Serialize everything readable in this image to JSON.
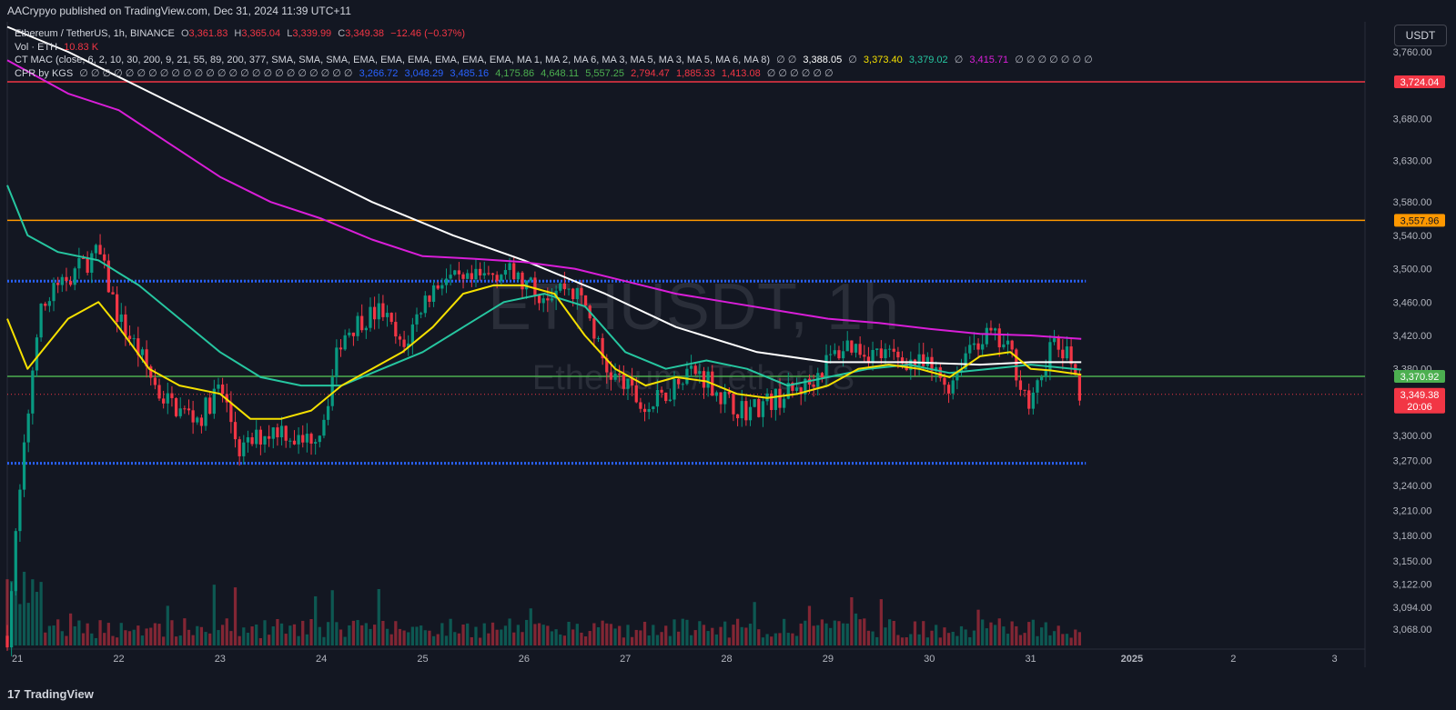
{
  "header": {
    "published": "AACrypyo published on TradingView.com, Dec 31, 2024 11:39 UTC+11"
  },
  "legend": {
    "symbol_line": "Ethereum / TetherUS, 1h, BINANCE",
    "ohlc": {
      "o_label": "O",
      "o": "3,361.83",
      "h_label": "H",
      "h": "3,365.04",
      "l_label": "L",
      "l": "3,339.99",
      "c_label": "C",
      "c": "3,349.38",
      "change": "−12.46 (−0.37%)"
    },
    "vol_label": "Vol · ETH",
    "vol_value": "10.83 K",
    "ctmac_label": "CT MAC (close, 6, 2, 10, 30, 200, 9, 21, 55, 89, 200, 377, SMA, SMA, SMA, EMA, EMA, EMA, EMA, EMA, EMA, MA 1, MA 2, MA 6, MA 3, MA 5, MA 3, MA 5, MA 6, MA 8)",
    "ctmac_sep1": "∅ ∅",
    "ctmac_values": [
      {
        "v": "3,388.05",
        "color": "#ffffff"
      },
      {
        "v": "3,373.40",
        "color": "#f5e000"
      },
      {
        "v": "3,379.02",
        "color": "#26c6a0"
      },
      {
        "v": "3,415.71",
        "color": "#d91ed8"
      }
    ],
    "ctmac_sep2": "∅",
    "ctmac_tail": "∅ ∅ ∅ ∅ ∅ ∅ ∅",
    "cpr_label": "CPR by KGS",
    "cpr_sep": "∅ ∅ ∅ ∅ ∅ ∅ ∅ ∅ ∅ ∅ ∅ ∅ ∅ ∅ ∅ ∅ ∅ ∅ ∅ ∅ ∅ ∅ ∅ ∅",
    "cpr_values": [
      {
        "v": "3,266.72",
        "color": "#2962ff"
      },
      {
        "v": "3,048.29",
        "color": "#2962ff"
      },
      {
        "v": "3,485.16",
        "color": "#2962ff"
      },
      {
        "v": "4,175.86",
        "color": "#4caf50"
      },
      {
        "v": "4,648.11",
        "color": "#4caf50"
      },
      {
        "v": "5,557.25",
        "color": "#4caf50"
      },
      {
        "v": "2,794.47",
        "color": "#f23645"
      },
      {
        "v": "1,885.33",
        "color": "#f23645"
      },
      {
        "v": "1,413.08",
        "color": "#f23645"
      }
    ],
    "cpr_tail": "∅ ∅ ∅ ∅ ∅ ∅"
  },
  "currency_button": "USDT",
  "watermark": {
    "symbol": "ETHUSDT, 1h",
    "name": "Ethereum / TetherUS"
  },
  "footer": {
    "brand": "TradingView",
    "logo": "17"
  },
  "colors": {
    "bg": "#131722",
    "up": "#089981",
    "down": "#f23645",
    "sma200": "#ffffff",
    "ma_yellow": "#f5e000",
    "ma_green": "#26c6a0",
    "ma_magenta": "#d91ed8",
    "cpr": "#2962ff"
  },
  "chart_data": {
    "type": "candlestick",
    "interval": "1h",
    "y_ticks": [
      "3,760.00",
      "3,680.00",
      "3,630.00",
      "3,580.00",
      "3,540.00",
      "3,500.00",
      "3,460.00",
      "3,420.00",
      "3,380.00",
      "3,300.00",
      "3,270.00",
      "3,240.00",
      "3,210.00",
      "3,180.00",
      "3,150.00",
      "3,122.00",
      "3,094.00",
      "3,068.00"
    ],
    "y_tick_values": [
      3760,
      3680,
      3630,
      3580,
      3540,
      3500,
      3460,
      3420,
      3380,
      3300,
      3270,
      3240,
      3210,
      3180,
      3150,
      3122,
      3094,
      3068
    ],
    "x_ticks": [
      "21",
      "22",
      "23",
      "24",
      "25",
      "26",
      "27",
      "28",
      "29",
      "30",
      "31",
      "2025",
      "2",
      "3"
    ],
    "x_tick_days": [
      21,
      22,
      23,
      24,
      25,
      26,
      27,
      28,
      29,
      30,
      31,
      32,
      33,
      34
    ],
    "x_range_days": [
      20.9,
      34.3
    ],
    "last_bar_day": 31.5,
    "horizontal_levels": [
      {
        "value": 3724.04,
        "label": "3,724.04",
        "color": "#f23645",
        "style": "solid"
      },
      {
        "value": 3557.96,
        "label": "3,557.96",
        "color": "#ff9800",
        "style": "solid"
      },
      {
        "value": 3370.92,
        "label": "3,370.92",
        "color": "#4caf50",
        "style": "solid"
      },
      {
        "value": 3485.16,
        "label": "",
        "color": "#2962ff",
        "style": "dotted"
      },
      {
        "value": 3266.72,
        "label": "",
        "color": "#2962ff",
        "style": "dotted"
      }
    ],
    "last_price": {
      "value": 3349.38,
      "label": "3,349.38",
      "countdown": "20:06",
      "color": "#f23645"
    },
    "key_path_days": [
      20.9,
      21.0,
      21.2,
      21.4,
      21.6,
      21.8,
      22.0,
      22.2,
      22.4,
      22.6,
      22.8,
      23.0,
      23.2,
      23.4,
      23.6,
      23.8,
      24.0,
      24.2,
      24.4,
      24.6,
      24.8,
      25.0,
      25.2,
      25.4,
      25.6,
      25.8,
      26.0,
      26.2,
      26.4,
      26.6,
      26.8,
      27.0,
      27.2,
      27.4,
      27.6,
      27.8,
      28.0,
      28.2,
      28.4,
      28.6,
      28.8,
      29.0,
      29.2,
      29.4,
      29.6,
      29.8,
      30.0,
      30.2,
      30.4,
      30.6,
      30.8,
      31.0,
      31.2,
      31.4,
      31.5
    ],
    "key_path_prices": [
      3060,
      3200,
      3440,
      3480,
      3500,
      3520,
      3440,
      3400,
      3350,
      3330,
      3320,
      3360,
      3280,
      3300,
      3310,
      3290,
      3310,
      3420,
      3440,
      3450,
      3400,
      3460,
      3490,
      3480,
      3490,
      3500,
      3480,
      3470,
      3480,
      3460,
      3380,
      3360,
      3330,
      3350,
      3380,
      3370,
      3340,
      3330,
      3340,
      3350,
      3360,
      3390,
      3410,
      3400,
      3395,
      3390,
      3380,
      3360,
      3410,
      3420,
      3400,
      3330,
      3410,
      3390,
      3349
    ],
    "ma_series": [
      {
        "color": "#ffffff",
        "days": [
          20.9,
          21.5,
          22.5,
          23.5,
          24.5,
          25.3,
          26.0,
          26.8,
          27.5,
          28.3,
          29.0,
          29.8,
          30.5,
          31.0,
          31.5
        ],
        "values": [
          3790,
          3760,
          3700,
          3640,
          3580,
          3540,
          3510,
          3470,
          3430,
          3400,
          3388,
          3388,
          3385,
          3388,
          3388
        ]
      },
      {
        "color": "#d91ed8",
        "days": [
          20.9,
          21.5,
          22.0,
          22.5,
          23.0,
          23.5,
          24.0,
          24.5,
          25.0,
          25.5,
          26.0,
          26.5,
          27.0,
          27.5,
          28.0,
          28.5,
          29.0,
          29.5,
          30.0,
          30.5,
          31.0,
          31.5
        ],
        "values": [
          3750,
          3710,
          3690,
          3650,
          3610,
          3580,
          3560,
          3535,
          3515,
          3512,
          3508,
          3500,
          3485,
          3470,
          3460,
          3450,
          3440,
          3435,
          3428,
          3422,
          3420,
          3416
        ]
      },
      {
        "color": "#26c6a0",
        "days": [
          20.9,
          21.1,
          21.4,
          21.8,
          22.2,
          22.6,
          23.0,
          23.4,
          23.8,
          24.2,
          24.6,
          25.0,
          25.4,
          25.8,
          26.2,
          26.6,
          27.0,
          27.4,
          27.8,
          28.2,
          28.6,
          29.0,
          29.4,
          29.8,
          30.2,
          30.6,
          31.0,
          31.5
        ],
        "values": [
          3600,
          3540,
          3520,
          3510,
          3480,
          3440,
          3400,
          3370,
          3360,
          3360,
          3380,
          3400,
          3430,
          3460,
          3470,
          3455,
          3400,
          3380,
          3390,
          3380,
          3360,
          3370,
          3380,
          3385,
          3375,
          3380,
          3385,
          3379
        ]
      },
      {
        "color": "#f5e000",
        "days": [
          20.9,
          21.1,
          21.3,
          21.5,
          21.8,
          22.0,
          22.3,
          22.6,
          23.0,
          23.3,
          23.6,
          23.9,
          24.2,
          24.5,
          24.8,
          25.1,
          25.4,
          25.7,
          26.0,
          26.3,
          26.6,
          26.9,
          27.2,
          27.5,
          27.8,
          28.1,
          28.4,
          28.7,
          29.0,
          29.3,
          29.6,
          29.9,
          30.2,
          30.5,
          30.8,
          31.0,
          31.2,
          31.5
        ],
        "values": [
          3440,
          3380,
          3410,
          3440,
          3460,
          3430,
          3380,
          3360,
          3350,
          3320,
          3320,
          3330,
          3360,
          3380,
          3400,
          3430,
          3470,
          3480,
          3480,
          3470,
          3420,
          3380,
          3360,
          3370,
          3365,
          3350,
          3345,
          3350,
          3360,
          3380,
          3385,
          3380,
          3370,
          3395,
          3400,
          3380,
          3378,
          3373
        ]
      }
    ]
  }
}
